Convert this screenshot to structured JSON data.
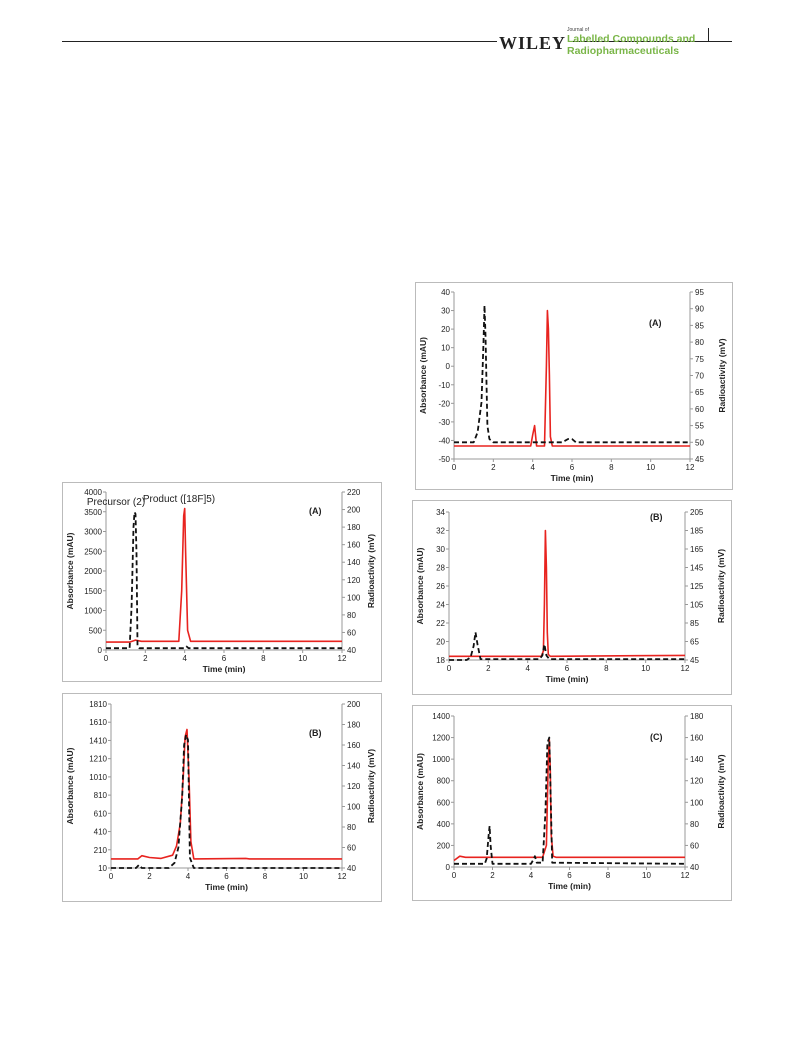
{
  "header": {
    "publisher": "WILEY",
    "journal_of": "Journal of",
    "journal_line1": "Labelled Compounds and",
    "journal_line2": "Radiopharmaceuticals"
  },
  "colors": {
    "uv_trace": "#e8231f",
    "radio_trace": "#111111",
    "journal_green": "#7ab648"
  },
  "chart_data": [
    {
      "id": "right-A",
      "type": "line",
      "panel_label": "(A)",
      "xlabel": "Time (min)",
      "ylabel": "Absorbance (mAU)",
      "y2label": "Radioactivity (mV)",
      "xlim": [
        0,
        12
      ],
      "ylim": [
        -50,
        40
      ],
      "y2lim": [
        45,
        95
      ],
      "xticks": [
        0,
        2,
        4,
        6,
        8,
        10,
        12
      ],
      "yticks": [
        -50,
        -40,
        -30,
        -20,
        -10,
        0,
        10,
        20,
        30,
        40
      ],
      "y2ticks": [
        45,
        50,
        55,
        60,
        65,
        70,
        75,
        80,
        85,
        90,
        95
      ],
      "series": [
        {
          "axis": "y",
          "style": "solid",
          "color": "#e8231f",
          "x": [
            0,
            3.9,
            4.0,
            4.1,
            4.2,
            4.6,
            4.7,
            4.75,
            4.8,
            4.85,
            4.9,
            5.0,
            12
          ],
          "y": [
            -43,
            -43,
            -37,
            -32,
            -43,
            -43,
            0,
            30,
            20,
            -5,
            -38,
            -43,
            -43
          ]
        },
        {
          "axis": "y2",
          "style": "dashed",
          "color": "#111111",
          "x": [
            0,
            1.0,
            1.2,
            1.4,
            1.5,
            1.55,
            1.6,
            1.7,
            1.8,
            2.0,
            5.5,
            5.8,
            6.0,
            6.2,
            12
          ],
          "y": [
            50,
            50,
            53,
            62,
            80,
            91,
            82,
            55,
            51,
            50,
            50,
            51,
            51,
            50,
            50
          ]
        }
      ]
    },
    {
      "id": "right-B",
      "type": "line",
      "panel_label": "(B)",
      "xlabel": "Time (min)",
      "ylabel": "Absorbance (mAU)",
      "y2label": "Radioactivity (mV)",
      "xlim": [
        0,
        12
      ],
      "ylim": [
        18,
        34
      ],
      "y2lim": [
        45,
        205
      ],
      "xticks": [
        0,
        2,
        4,
        6,
        8,
        10,
        12
      ],
      "yticks": [
        18,
        20,
        22,
        24,
        26,
        28,
        30,
        32,
        34
      ],
      "y2ticks": [
        45,
        65,
        85,
        105,
        125,
        145,
        165,
        185,
        205
      ],
      "series": [
        {
          "axis": "y",
          "style": "solid",
          "color": "#e8231f",
          "x": [
            0,
            4.7,
            4.8,
            4.85,
            4.9,
            4.95,
            5.0,
            5.05,
            5.15,
            12
          ],
          "y": [
            18.4,
            18.4,
            19.0,
            24.0,
            32.0,
            28.0,
            21.0,
            18.6,
            18.4,
            18.5
          ]
        },
        {
          "axis": "y2",
          "style": "dashed",
          "color": "#111111",
          "x": [
            0,
            0.9,
            1.1,
            1.25,
            1.35,
            1.45,
            1.6,
            4.6,
            4.75,
            4.85,
            4.95,
            5.1,
            12
          ],
          "y": [
            45,
            45,
            48,
            60,
            75,
            62,
            46,
            46,
            50,
            62,
            50,
            46,
            46
          ]
        }
      ]
    },
    {
      "id": "right-C",
      "type": "line",
      "panel_label": "(C)",
      "xlabel": "Time (min)",
      "ylabel": "Absorbance (mAU)",
      "y2label": "Radioactivity (mV)",
      "xlim": [
        0,
        12
      ],
      "ylim": [
        0,
        1400
      ],
      "y2lim": [
        40,
        180
      ],
      "xticks": [
        0,
        2,
        4,
        6,
        8,
        10,
        12
      ],
      "yticks": [
        0,
        200,
        400,
        600,
        800,
        1000,
        1200,
        1400
      ],
      "y2ticks": [
        40,
        60,
        80,
        100,
        120,
        140,
        160,
        180
      ],
      "series": [
        {
          "axis": "y",
          "style": "solid",
          "color": "#e8231f",
          "x": [
            0,
            0.3,
            0.6,
            4.6,
            4.8,
            4.9,
            4.95,
            5.0,
            5.05,
            5.15,
            5.3,
            12
          ],
          "y": [
            60,
            100,
            90,
            90,
            200,
            1000,
            1180,
            900,
            300,
            100,
            90,
            90
          ]
        },
        {
          "axis": "y2",
          "style": "dashed",
          "color": "#111111",
          "x": [
            0,
            1.6,
            1.7,
            1.8,
            1.85,
            1.9,
            2.0,
            4.0,
            4.1,
            4.2,
            4.3,
            4.6,
            4.75,
            4.85,
            4.95,
            5.0,
            5.1,
            12
          ],
          "y": [
            43,
            43,
            48,
            70,
            78,
            60,
            43,
            43,
            46,
            50,
            44,
            44,
            90,
            155,
            160,
            120,
            44,
            43
          ]
        }
      ]
    },
    {
      "id": "left-A",
      "type": "line",
      "panel_label": "(A)",
      "annotations": [
        "Precursor (2)",
        "Product ([18F]5)"
      ],
      "xlabel": "Time (min)",
      "ylabel": "Absorbance (mAU)",
      "y2label": "Radioactivity (mV)",
      "xlim": [
        0,
        12
      ],
      "ylim": [
        0,
        4000
      ],
      "y2lim": [
        40,
        220
      ],
      "xticks": [
        0,
        2,
        4,
        6,
        8,
        10,
        12
      ],
      "yticks": [
        0,
        500,
        1000,
        1500,
        2000,
        2500,
        3000,
        3500,
        4000
      ],
      "y2ticks": [
        40,
        60,
        80,
        100,
        120,
        140,
        160,
        180,
        200,
        220
      ],
      "series": [
        {
          "axis": "y",
          "style": "solid",
          "color": "#e8231f",
          "x": [
            0,
            1.2,
            1.5,
            1.8,
            3.7,
            3.85,
            3.95,
            4.0,
            4.05,
            4.15,
            4.3,
            12
          ],
          "y": [
            200,
            200,
            250,
            220,
            220,
            1500,
            3400,
            3580,
            2500,
            500,
            220,
            220
          ]
        },
        {
          "axis": "y2",
          "style": "dashed",
          "color": "#111111",
          "x": [
            0,
            1.2,
            1.3,
            1.4,
            1.45,
            1.5,
            1.55,
            1.6,
            1.7,
            4.0,
            4.1,
            4.2,
            12
          ],
          "y": [
            42,
            42,
            90,
            180,
            197,
            195,
            150,
            45,
            42,
            42,
            44,
            42,
            42
          ]
        }
      ]
    },
    {
      "id": "left-B",
      "type": "line",
      "panel_label": "(B)",
      "xlabel": "Time (min)",
      "ylabel": "Absorbance (mAU)",
      "y2label": "Radioactivity (mV)",
      "xlim": [
        0,
        12
      ],
      "ylim": [
        10,
        1810
      ],
      "y2lim": [
        40,
        200
      ],
      "xticks": [
        0,
        2,
        4,
        6,
        8,
        10,
        12
      ],
      "yticks": [
        10,
        210,
        410,
        610,
        810,
        1010,
        1210,
        1410,
        1610,
        1810
      ],
      "y2ticks": [
        40,
        60,
        80,
        100,
        120,
        140,
        160,
        180,
        200
      ],
      "series": [
        {
          "axis": "y",
          "style": "solid",
          "color": "#e8231f",
          "x": [
            0,
            1.4,
            1.6,
            2.0,
            2.6,
            3.2,
            3.4,
            3.6,
            3.75,
            3.85,
            3.95,
            4.05,
            4.15,
            4.3,
            7.0,
            7.2,
            12
          ],
          "y": [
            110,
            110,
            145,
            125,
            115,
            150,
            250,
            500,
            1000,
            1450,
            1530,
            1000,
            300,
            110,
            115,
            110,
            110
          ]
        },
        {
          "axis": "y2",
          "style": "dashed",
          "color": "#111111",
          "x": [
            0,
            1.3,
            1.45,
            1.6,
            3.0,
            3.3,
            3.5,
            3.7,
            3.8,
            3.9,
            4.0,
            4.1,
            4.3,
            12
          ],
          "y": [
            40,
            40,
            43,
            40,
            40,
            45,
            60,
            110,
            160,
            170,
            165,
            50,
            40,
            40
          ]
        }
      ]
    }
  ]
}
